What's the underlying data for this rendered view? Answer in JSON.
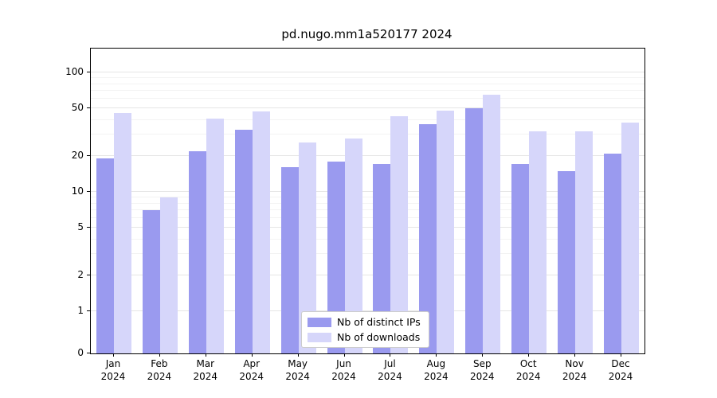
{
  "chart_data": {
    "type": "bar",
    "title": "pd.nugo.mm1a520177 2024",
    "categories": [
      "Jan",
      "Feb",
      "Mar",
      "Apr",
      "May",
      "Jun",
      "Jul",
      "Aug",
      "Sep",
      "Oct",
      "Nov",
      "Dec"
    ],
    "category_year": "2024",
    "series": [
      {
        "name": "Nb of distinct IPs",
        "color": "#9a9aef",
        "values": [
          19,
          7,
          22,
          33,
          16,
          18,
          17,
          37,
          50,
          17,
          15,
          21
        ]
      },
      {
        "name": "Nb of downloads",
        "color": "#d6d6fa",
        "values": [
          46,
          9,
          41,
          47,
          26,
          28,
          43,
          48,
          65,
          32,
          32,
          38
        ]
      }
    ],
    "yscale": "symlog",
    "yticks": [
      0,
      1,
      2,
      5,
      10,
      20,
      50,
      100
    ],
    "yticks_minor": [
      3,
      4,
      6,
      7,
      8,
      9,
      30,
      40,
      60,
      70,
      80,
      90
    ],
    "ylim": [
      0,
      158
    ],
    "grid": "on",
    "legend_position": "lower center"
  }
}
